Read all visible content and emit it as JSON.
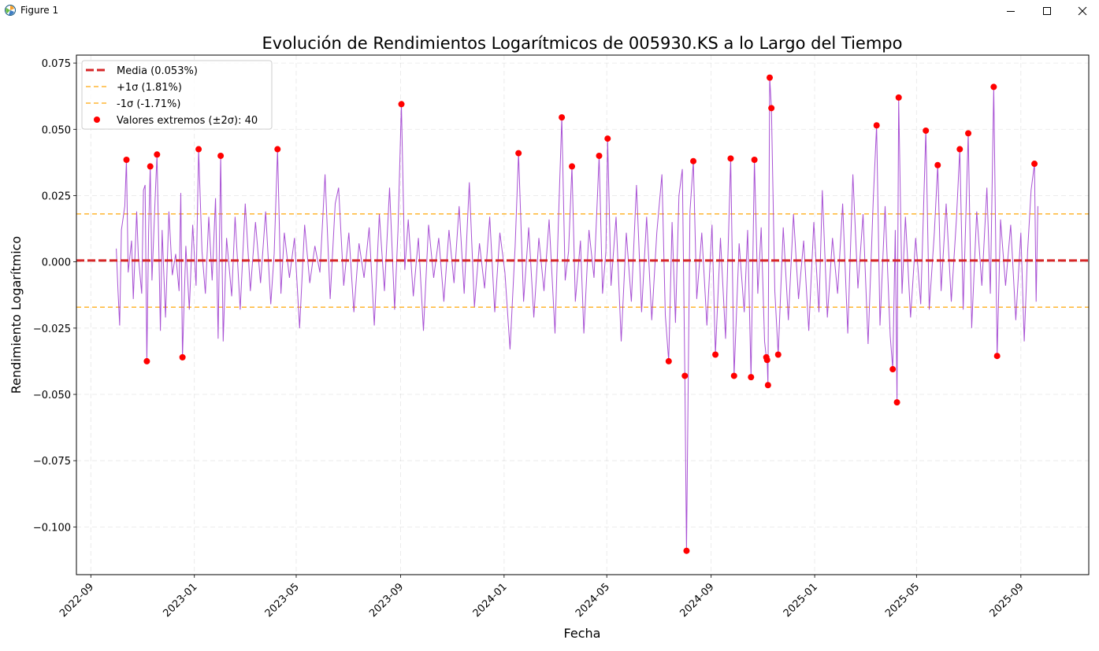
{
  "window": {
    "title": "Figure 1",
    "icons": {
      "app": "matplotlib-figure-icon",
      "minimize": "minimize-icon",
      "maximize": "maximize-icon",
      "close": "close-icon"
    }
  },
  "chart_data": {
    "type": "line",
    "title": "Evolución de Rendimientos Logarítmicos de 005930.KS a lo Largo del Tiempo",
    "xlabel": "Fecha",
    "ylabel": "Rendimiento Logarítmico",
    "x_ticks": [
      "2022-09",
      "2023-01",
      "2023-05",
      "2023-09",
      "2024-01",
      "2024-05",
      "2024-09",
      "2025-01",
      "2025-05",
      "2025-09"
    ],
    "y_ticks": [
      0.075,
      0.05,
      0.025,
      0.0,
      -0.025,
      -0.05,
      -0.075,
      -0.1
    ],
    "y_tick_labels": [
      "0.075",
      "0.050",
      "0.025",
      "0.000",
      "−0.025",
      "−0.050",
      "−0.075",
      "−0.100"
    ],
    "xlim": [
      "2022-08-15",
      "2025-11-20"
    ],
    "ylim": [
      -0.118,
      0.078
    ],
    "grid": true,
    "legend_position": "top-left",
    "legend": [
      {
        "label": "Media (0.053%)",
        "style": "dashed-thick",
        "color": "#d62728"
      },
      {
        "label": "+1σ (1.81%)",
        "style": "dashed",
        "color": "#ffa500"
      },
      {
        "label": "-1σ (-1.71%)",
        "style": "dashed",
        "color": "#ffa500"
      },
      {
        "label": "Valores extremos (±2σ): 40",
        "style": "marker",
        "color": "#ff0000"
      }
    ],
    "colors": {
      "series": "#9932cc",
      "mean": "#d62728",
      "sigma": "#ffa500",
      "extremes": "#ff0000"
    },
    "mean": 0.00053,
    "plus_sigma": 0.0181,
    "minus_sigma": -0.0171,
    "series": [
      {
        "values": [
          [
            "2022-10-01",
            0.005
          ],
          [
            "2022-10-03",
            -0.011
          ],
          [
            "2022-10-05",
            -0.024
          ],
          [
            "2022-10-07",
            0.012
          ],
          [
            "2022-10-11",
            0.021
          ],
          [
            "2022-10-13",
            0.0385
          ],
          [
            "2022-10-15",
            -0.004
          ],
          [
            "2022-10-19",
            0.008
          ],
          [
            "2022-10-21",
            -0.014
          ],
          [
            "2022-10-25",
            0.019
          ],
          [
            "2022-10-27",
            0.002
          ],
          [
            "2022-10-31",
            -0.012
          ],
          [
            "2022-11-02",
            0.027
          ],
          [
            "2022-11-04",
            0.029
          ],
          [
            "2022-11-06",
            -0.0375
          ],
          [
            "2022-11-08",
            0.011
          ],
          [
            "2022-11-10",
            0.036
          ],
          [
            "2022-11-12",
            -0.007
          ],
          [
            "2022-11-16",
            0.026
          ],
          [
            "2022-11-18",
            0.0405
          ],
          [
            "2022-11-22",
            -0.026
          ],
          [
            "2022-11-24",
            0.012
          ],
          [
            "2022-11-28",
            -0.021
          ],
          [
            "2022-12-02",
            0.019
          ],
          [
            "2022-12-06",
            -0.005
          ],
          [
            "2022-12-10",
            0.003
          ],
          [
            "2022-12-14",
            -0.011
          ],
          [
            "2022-12-16",
            0.026
          ],
          [
            "2022-12-18",
            -0.036
          ],
          [
            "2022-12-22",
            0.006
          ],
          [
            "2022-12-26",
            -0.018
          ],
          [
            "2022-12-30",
            0.014
          ],
          [
            "2023-01-03",
            -0.009
          ],
          [
            "2023-01-06",
            0.0425
          ],
          [
            "2023-01-10",
            0.004
          ],
          [
            "2023-01-14",
            -0.012
          ],
          [
            "2023-01-18",
            0.017
          ],
          [
            "2023-01-22",
            -0.007
          ],
          [
            "2023-01-26",
            0.024
          ],
          [
            "2023-01-29",
            -0.029
          ],
          [
            "2023-02-01",
            0.04
          ],
          [
            "2023-02-04",
            -0.03
          ],
          [
            "2023-02-08",
            0.009
          ],
          [
            "2023-02-14",
            -0.013
          ],
          [
            "2023-02-18",
            0.017
          ],
          [
            "2023-02-24",
            -0.018
          ],
          [
            "2023-03-02",
            0.022
          ],
          [
            "2023-03-08",
            -0.011
          ],
          [
            "2023-03-14",
            0.015
          ],
          [
            "2023-03-20",
            -0.008
          ],
          [
            "2023-03-26",
            0.019
          ],
          [
            "2023-04-01",
            -0.016
          ],
          [
            "2023-04-05",
            0.003
          ],
          [
            "2023-04-09",
            0.0425
          ],
          [
            "2023-04-13",
            -0.012
          ],
          [
            "2023-04-17",
            0.011
          ],
          [
            "2023-04-23",
            -0.006
          ],
          [
            "2023-04-29",
            0.009
          ],
          [
            "2023-05-05",
            -0.025
          ],
          [
            "2023-05-11",
            0.014
          ],
          [
            "2023-05-17",
            -0.008
          ],
          [
            "2023-05-23",
            0.006
          ],
          [
            "2023-05-29",
            -0.004
          ],
          [
            "2023-06-04",
            0.033
          ],
          [
            "2023-06-10",
            -0.014
          ],
          [
            "2023-06-16",
            0.022
          ],
          [
            "2023-06-20",
            0.028
          ],
          [
            "2023-06-26",
            -0.009
          ],
          [
            "2023-07-02",
            0.011
          ],
          [
            "2023-07-08",
            -0.019
          ],
          [
            "2023-07-14",
            0.007
          ],
          [
            "2023-07-20",
            -0.006
          ],
          [
            "2023-07-26",
            0.013
          ],
          [
            "2023-08-01",
            -0.024
          ],
          [
            "2023-08-07",
            0.018
          ],
          [
            "2023-08-13",
            -0.011
          ],
          [
            "2023-08-19",
            0.028
          ],
          [
            "2023-08-25",
            -0.018
          ],
          [
            "2023-08-29",
            0.012
          ],
          [
            "2023-09-02",
            0.0595
          ],
          [
            "2023-09-06",
            -0.003
          ],
          [
            "2023-09-10",
            0.016
          ],
          [
            "2023-09-16",
            -0.013
          ],
          [
            "2023-09-22",
            0.009
          ],
          [
            "2023-09-28",
            -0.026
          ],
          [
            "2023-10-04",
            0.014
          ],
          [
            "2023-10-10",
            -0.006
          ],
          [
            "2023-10-16",
            0.009
          ],
          [
            "2023-10-22",
            -0.015
          ],
          [
            "2023-10-28",
            0.012
          ],
          [
            "2023-11-03",
            -0.008
          ],
          [
            "2023-11-09",
            0.021
          ],
          [
            "2023-11-15",
            -0.012
          ],
          [
            "2023-11-21",
            0.03
          ],
          [
            "2023-11-27",
            -0.017
          ],
          [
            "2023-12-03",
            0.007
          ],
          [
            "2023-12-09",
            -0.01
          ],
          [
            "2023-12-15",
            0.017
          ],
          [
            "2023-12-21",
            -0.019
          ],
          [
            "2023-12-27",
            0.011
          ],
          [
            "2024-01-02",
            -0.004
          ],
          [
            "2024-01-08",
            -0.033
          ],
          [
            "2024-01-14",
            0.006
          ],
          [
            "2024-01-18",
            0.041
          ],
          [
            "2024-01-24",
            -0.015
          ],
          [
            "2024-01-30",
            0.013
          ],
          [
            "2024-02-05",
            -0.021
          ],
          [
            "2024-02-11",
            0.009
          ],
          [
            "2024-02-17",
            -0.011
          ],
          [
            "2024-02-23",
            0.016
          ],
          [
            "2024-03-01",
            -0.027
          ],
          [
            "2024-03-05",
            0.015
          ],
          [
            "2024-03-09",
            0.0545
          ],
          [
            "2024-03-13",
            -0.007
          ],
          [
            "2024-03-17",
            0.004
          ],
          [
            "2024-03-21",
            0.036
          ],
          [
            "2024-03-25",
            -0.015
          ],
          [
            "2024-03-31",
            0.008
          ],
          [
            "2024-04-04",
            -0.027
          ],
          [
            "2024-04-10",
            0.012
          ],
          [
            "2024-04-16",
            -0.006
          ],
          [
            "2024-04-22",
            0.04
          ],
          [
            "2024-04-26",
            -0.012
          ],
          [
            "2024-04-30",
            0.004
          ],
          [
            "2024-05-02",
            0.0465
          ],
          [
            "2024-05-06",
            -0.009
          ],
          [
            "2024-05-12",
            0.017
          ],
          [
            "2024-05-18",
            -0.03
          ],
          [
            "2024-05-24",
            0.011
          ],
          [
            "2024-05-30",
            -0.015
          ],
          [
            "2024-06-05",
            0.029
          ],
          [
            "2024-06-11",
            -0.019
          ],
          [
            "2024-06-17",
            0.017
          ],
          [
            "2024-06-23",
            -0.022
          ],
          [
            "2024-06-29",
            0.011
          ],
          [
            "2024-07-05",
            0.033
          ],
          [
            "2024-07-09",
            -0.02
          ],
          [
            "2024-07-13",
            -0.0375
          ],
          [
            "2024-07-17",
            0.015
          ],
          [
            "2024-07-21",
            -0.023
          ],
          [
            "2024-07-25",
            0.025
          ],
          [
            "2024-07-29",
            0.035
          ],
          [
            "2024-08-01",
            -0.043
          ],
          [
            "2024-08-03",
            -0.109
          ],
          [
            "2024-08-07",
            0.019
          ],
          [
            "2024-08-11",
            0.038
          ],
          [
            "2024-08-15",
            -0.014
          ],
          [
            "2024-08-21",
            0.011
          ],
          [
            "2024-08-27",
            -0.024
          ],
          [
            "2024-09-02",
            0.014
          ],
          [
            "2024-09-06",
            -0.035
          ],
          [
            "2024-09-12",
            0.009
          ],
          [
            "2024-09-18",
            -0.029
          ],
          [
            "2024-09-24",
            0.039
          ],
          [
            "2024-09-28",
            -0.043
          ],
          [
            "2024-10-04",
            0.007
          ],
          [
            "2024-10-10",
            -0.019
          ],
          [
            "2024-10-14",
            0.012
          ],
          [
            "2024-10-18",
            -0.0435
          ],
          [
            "2024-10-22",
            0.0385
          ],
          [
            "2024-10-26",
            -0.012
          ],
          [
            "2024-10-30",
            0.013
          ],
          [
            "2024-11-03",
            -0.03
          ],
          [
            "2024-11-05",
            -0.036
          ],
          [
            "2024-11-06",
            -0.037
          ],
          [
            "2024-11-07",
            -0.0465
          ],
          [
            "2024-11-09",
            0.0695
          ],
          [
            "2024-11-11",
            0.058
          ],
          [
            "2024-11-15",
            -0.011
          ],
          [
            "2024-11-19",
            -0.035
          ],
          [
            "2024-11-25",
            0.013
          ],
          [
            "2024-12-01",
            -0.022
          ],
          [
            "2024-12-07",
            0.018
          ],
          [
            "2024-12-13",
            -0.014
          ],
          [
            "2024-12-19",
            0.008
          ],
          [
            "2024-12-25",
            -0.026
          ],
          [
            "2024-12-31",
            0.015
          ],
          [
            "2025-01-06",
            -0.019
          ],
          [
            "2025-01-10",
            0.027
          ],
          [
            "2025-01-16",
            -0.021
          ],
          [
            "2025-01-22",
            0.009
          ],
          [
            "2025-01-28",
            -0.012
          ],
          [
            "2025-02-03",
            0.022
          ],
          [
            "2025-02-09",
            -0.027
          ],
          [
            "2025-02-15",
            0.033
          ],
          [
            "2025-02-21",
            -0.01
          ],
          [
            "2025-02-27",
            0.018
          ],
          [
            "2025-03-05",
            -0.031
          ],
          [
            "2025-03-11",
            0.023
          ],
          [
            "2025-03-15",
            0.0515
          ],
          [
            "2025-03-19",
            -0.024
          ],
          [
            "2025-03-25",
            0.021
          ],
          [
            "2025-03-31",
            -0.028
          ],
          [
            "2025-04-03",
            -0.0405
          ],
          [
            "2025-04-06",
            0.012
          ],
          [
            "2025-04-08",
            -0.053
          ],
          [
            "2025-04-10",
            0.062
          ],
          [
            "2025-04-14",
            -0.012
          ],
          [
            "2025-04-18",
            0.017
          ],
          [
            "2025-04-24",
            -0.021
          ],
          [
            "2025-04-30",
            0.009
          ],
          [
            "2025-05-06",
            -0.016
          ],
          [
            "2025-05-12",
            0.0495
          ],
          [
            "2025-05-16",
            -0.018
          ],
          [
            "2025-05-22",
            0.011
          ],
          [
            "2025-05-26",
            0.0365
          ],
          [
            "2025-05-30",
            -0.011
          ],
          [
            "2025-06-05",
            0.022
          ],
          [
            "2025-06-11",
            -0.015
          ],
          [
            "2025-06-17",
            0.016
          ],
          [
            "2025-06-21",
            0.0425
          ],
          [
            "2025-06-25",
            -0.018
          ],
          [
            "2025-07-01",
            0.0485
          ],
          [
            "2025-07-05",
            -0.025
          ],
          [
            "2025-07-11",
            0.019
          ],
          [
            "2025-07-17",
            -0.009
          ],
          [
            "2025-07-23",
            0.028
          ],
          [
            "2025-07-27",
            -0.012
          ],
          [
            "2025-07-31",
            0.066
          ],
          [
            "2025-08-04",
            -0.0355
          ],
          [
            "2025-08-08",
            0.016
          ],
          [
            "2025-08-14",
            -0.009
          ],
          [
            "2025-08-20",
            0.014
          ],
          [
            "2025-08-26",
            -0.022
          ],
          [
            "2025-09-01",
            0.011
          ],
          [
            "2025-09-05",
            -0.03
          ],
          [
            "2025-09-09",
            0.004
          ],
          [
            "2025-09-13",
            0.027
          ],
          [
            "2025-09-17",
            0.037
          ],
          [
            "2025-09-19",
            -0.015
          ],
          [
            "2025-09-21",
            0.021
          ]
        ]
      }
    ],
    "extremes": [
      [
        "2022-10-13",
        0.0385
      ],
      [
        "2022-11-06",
        -0.0375
      ],
      [
        "2022-11-10",
        0.036
      ],
      [
        "2022-11-18",
        0.0405
      ],
      [
        "2022-12-18",
        -0.036
      ],
      [
        "2023-01-06",
        0.0425
      ],
      [
        "2023-02-01",
        0.04
      ],
      [
        "2023-04-09",
        0.0425
      ],
      [
        "2023-09-02",
        0.0595
      ],
      [
        "2024-01-18",
        0.041
      ],
      [
        "2024-03-09",
        0.0545
      ],
      [
        "2024-03-21",
        0.036
      ],
      [
        "2024-04-22",
        0.04
      ],
      [
        "2024-05-02",
        0.0465
      ],
      [
        "2024-07-13",
        -0.0375
      ],
      [
        "2024-08-01",
        -0.043
      ],
      [
        "2024-08-03",
        -0.109
      ],
      [
        "2024-08-11",
        0.038
      ],
      [
        "2024-09-06",
        -0.035
      ],
      [
        "2024-09-24",
        0.039
      ],
      [
        "2024-09-28",
        -0.043
      ],
      [
        "2024-10-18",
        -0.0435
      ],
      [
        "2024-10-22",
        0.0385
      ],
      [
        "2024-11-05",
        -0.036
      ],
      [
        "2024-11-06",
        -0.037
      ],
      [
        "2024-11-07",
        -0.0465
      ],
      [
        "2024-11-09",
        0.0695
      ],
      [
        "2024-11-11",
        0.058
      ],
      [
        "2024-11-19",
        -0.035
      ],
      [
        "2025-03-15",
        0.0515
      ],
      [
        "2025-04-03",
        -0.0405
      ],
      [
        "2025-04-08",
        -0.053
      ],
      [
        "2025-04-10",
        0.062
      ],
      [
        "2025-05-12",
        0.0495
      ],
      [
        "2025-05-26",
        0.0365
      ],
      [
        "2025-06-21",
        0.0425
      ],
      [
        "2025-07-01",
        0.0485
      ],
      [
        "2025-07-31",
        0.066
      ],
      [
        "2025-08-04",
        -0.0355
      ],
      [
        "2025-09-17",
        0.037
      ]
    ]
  }
}
